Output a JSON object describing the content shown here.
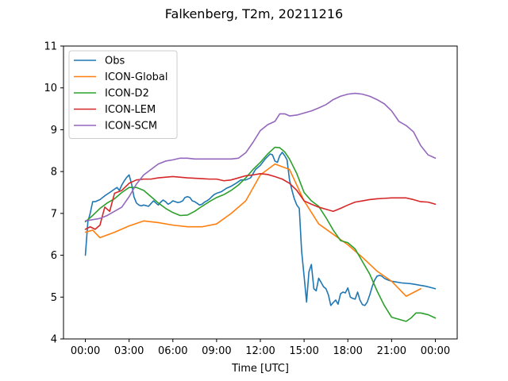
{
  "chart_data": {
    "type": "line",
    "title": "Falkenberg, T2m, 20211216",
    "xlabel": "Time [UTC]",
    "ylabel": "",
    "xlim": [
      -1.5,
      25.5
    ],
    "ylim": [
      4,
      11
    ],
    "x_ticks": [
      0,
      3,
      6,
      9,
      12,
      15,
      18,
      21,
      24
    ],
    "x_tick_labels": [
      "00:00",
      "03:00",
      "06:00",
      "09:00",
      "12:00",
      "15:00",
      "18:00",
      "21:00",
      "00:00"
    ],
    "y_ticks": [
      4,
      5,
      6,
      7,
      8,
      9,
      10,
      11
    ],
    "y_tick_labels": [
      "4",
      "5",
      "6",
      "7",
      "8",
      "9",
      "10",
      "11"
    ],
    "grid": false,
    "legend_position": "upper-left",
    "series": [
      {
        "name": "Obs",
        "color": "#1f77b4",
        "x": [
          0,
          0.17,
          0.33,
          0.5,
          0.67,
          1.0,
          1.33,
          1.67,
          2.0,
          2.17,
          2.33,
          2.5,
          2.67,
          2.83,
          3.0,
          3.17,
          3.33,
          3.5,
          3.67,
          3.83,
          4.0,
          4.33,
          4.67,
          5.0,
          5.17,
          5.33,
          5.5,
          5.67,
          5.83,
          6.0,
          6.17,
          6.33,
          6.5,
          6.67,
          6.83,
          7.0,
          7.17,
          7.33,
          7.5,
          7.67,
          7.83,
          8.0,
          8.17,
          8.33,
          8.5,
          8.67,
          8.83,
          9.0,
          9.33,
          9.67,
          10.0,
          10.33,
          10.67,
          11.0,
          11.33,
          11.67,
          12.0,
          12.33,
          12.67,
          12.83,
          13.0,
          13.17,
          13.33,
          13.5,
          13.67,
          13.83,
          14.0,
          14.17,
          14.33,
          14.5,
          14.67,
          14.83,
          15.0,
          15.17,
          15.33,
          15.5,
          15.67,
          15.83,
          16.0,
          16.17,
          16.33,
          16.5,
          16.67,
          16.83,
          17.0,
          17.17,
          17.33,
          17.5,
          17.67,
          17.83,
          18.0,
          18.17,
          18.33,
          18.5,
          18.67,
          18.83,
          19.0,
          19.17,
          19.33,
          19.5,
          19.67,
          19.83,
          20.0,
          20.17,
          20.33,
          20.5,
          20.67,
          20.83,
          21.0,
          21.33,
          21.67,
          22.0,
          22.33,
          22.67,
          23.0,
          23.33,
          23.67,
          24.0
        ],
        "y": [
          6.0,
          6.8,
          7.0,
          7.28,
          7.28,
          7.33,
          7.42,
          7.5,
          7.58,
          7.62,
          7.55,
          7.68,
          7.78,
          7.86,
          7.92,
          7.7,
          7.4,
          7.25,
          7.2,
          7.18,
          7.2,
          7.17,
          7.3,
          7.2,
          7.27,
          7.32,
          7.28,
          7.22,
          7.25,
          7.3,
          7.28,
          7.26,
          7.27,
          7.3,
          7.38,
          7.4,
          7.38,
          7.3,
          7.28,
          7.24,
          7.2,
          7.22,
          7.27,
          7.3,
          7.34,
          7.4,
          7.45,
          7.48,
          7.52,
          7.6,
          7.65,
          7.72,
          7.8,
          7.8,
          7.85,
          8.05,
          8.15,
          8.3,
          8.42,
          8.4,
          8.25,
          8.22,
          8.38,
          8.46,
          8.38,
          8.28,
          7.8,
          7.55,
          7.35,
          7.2,
          7.12,
          6.1,
          5.5,
          4.88,
          5.6,
          5.78,
          5.2,
          5.15,
          5.45,
          5.35,
          5.25,
          5.2,
          5.05,
          4.8,
          4.87,
          4.93,
          4.83,
          5.08,
          5.12,
          5.1,
          5.22,
          5.0,
          4.97,
          4.95,
          5.12,
          4.93,
          4.82,
          4.8,
          4.88,
          5.05,
          5.25,
          5.4,
          5.5,
          5.52,
          5.5,
          5.45,
          5.42,
          5.4,
          5.38,
          5.36,
          5.34,
          5.33,
          5.32,
          5.3,
          5.28,
          5.26,
          5.23,
          5.2
        ]
      },
      {
        "name": "ICON-Global",
        "color": "#ff7f0e",
        "x": [
          0,
          0.5,
          1,
          2,
          3,
          4,
          5,
          6,
          7,
          8,
          9,
          10,
          11,
          12,
          13,
          14,
          15,
          16,
          17,
          18,
          19,
          20,
          21,
          22,
          23
        ],
        "y": [
          6.55,
          6.6,
          6.42,
          6.55,
          6.7,
          6.82,
          6.78,
          6.72,
          6.68,
          6.68,
          6.75,
          7.0,
          7.3,
          7.92,
          8.18,
          8.05,
          7.3,
          6.75,
          6.5,
          6.25,
          5.95,
          5.62,
          5.38,
          5.02,
          5.2
        ]
      },
      {
        "name": "ICON-D2",
        "color": "#2ca02c",
        "x": [
          0,
          0.5,
          1,
          1.5,
          2,
          2.5,
          3,
          3.5,
          4,
          4.5,
          5,
          5.5,
          6,
          6.5,
          7,
          7.5,
          8,
          8.5,
          9,
          9.5,
          10,
          10.5,
          11,
          11.5,
          12,
          12.5,
          13,
          13.33,
          13.67,
          14,
          14.5,
          15,
          15.5,
          16,
          16.5,
          17,
          17.5,
          18,
          18.5,
          19,
          19.5,
          20,
          20.5,
          21,
          21.5,
          22,
          22.33,
          22.67,
          23,
          23.5,
          24
        ],
        "y": [
          6.8,
          6.95,
          7.12,
          7.25,
          7.35,
          7.5,
          7.62,
          7.62,
          7.55,
          7.4,
          7.25,
          7.12,
          7.02,
          6.95,
          6.96,
          7.05,
          7.17,
          7.28,
          7.38,
          7.45,
          7.55,
          7.68,
          7.85,
          8.05,
          8.22,
          8.42,
          8.58,
          8.57,
          8.47,
          8.3,
          7.95,
          7.5,
          7.3,
          7.17,
          6.9,
          6.6,
          6.35,
          6.3,
          6.15,
          5.85,
          5.55,
          5.15,
          4.8,
          4.52,
          4.47,
          4.42,
          4.5,
          4.62,
          4.62,
          4.58,
          4.5
        ]
      },
      {
        "name": "ICON-LEM",
        "color": "#d62728",
        "x": [
          0,
          0.33,
          0.67,
          1,
          1.33,
          1.67,
          2,
          2.5,
          3,
          3.5,
          4,
          4.5,
          5,
          6,
          7,
          8,
          8.5,
          9,
          9.5,
          10,
          10.5,
          11,
          11.5,
          12,
          12.5,
          13,
          13.5,
          14,
          14.5,
          15,
          15.5,
          16,
          16.5,
          17,
          17.5,
          18,
          18.5,
          19,
          19.5,
          20,
          20.5,
          21,
          21.5,
          22,
          22.5,
          23,
          23.5,
          24
        ],
        "y": [
          6.62,
          6.68,
          6.62,
          6.72,
          7.15,
          7.05,
          7.48,
          7.55,
          7.72,
          7.8,
          7.82,
          7.82,
          7.85,
          7.88,
          7.85,
          7.83,
          7.82,
          7.82,
          7.78,
          7.8,
          7.85,
          7.9,
          7.92,
          7.95,
          7.93,
          7.88,
          7.82,
          7.72,
          7.55,
          7.3,
          7.22,
          7.15,
          7.1,
          7.05,
          7.12,
          7.2,
          7.27,
          7.3,
          7.33,
          7.35,
          7.36,
          7.37,
          7.37,
          7.37,
          7.33,
          7.28,
          7.27,
          7.22
        ]
      },
      {
        "name": "ICON-SCM",
        "color": "#9467bd",
        "x": [
          0,
          0.5,
          1,
          1.5,
          2,
          2.5,
          3,
          3.5,
          4,
          4.5,
          5,
          5.5,
          6,
          6.5,
          7,
          7.5,
          8,
          8.5,
          9,
          9.5,
          10,
          10.5,
          11,
          11.5,
          12,
          12.5,
          13,
          13.33,
          13.67,
          14,
          14.5,
          15,
          15.5,
          16,
          16.5,
          17,
          17.5,
          18,
          18.5,
          19,
          19.5,
          20,
          20.5,
          21,
          21.5,
          22,
          22.5,
          23,
          23.5,
          24
        ],
        "y": [
          6.82,
          6.85,
          6.88,
          6.95,
          7.05,
          7.15,
          7.4,
          7.7,
          7.92,
          8.05,
          8.18,
          8.25,
          8.28,
          8.32,
          8.32,
          8.3,
          8.3,
          8.3,
          8.3,
          8.3,
          8.3,
          8.32,
          8.45,
          8.7,
          8.98,
          9.12,
          9.2,
          9.38,
          9.38,
          9.33,
          9.35,
          9.4,
          9.45,
          9.52,
          9.6,
          9.72,
          9.8,
          9.85,
          9.87,
          9.85,
          9.8,
          9.72,
          9.62,
          9.45,
          9.2,
          9.1,
          8.95,
          8.62,
          8.4,
          8.32
        ]
      }
    ]
  }
}
